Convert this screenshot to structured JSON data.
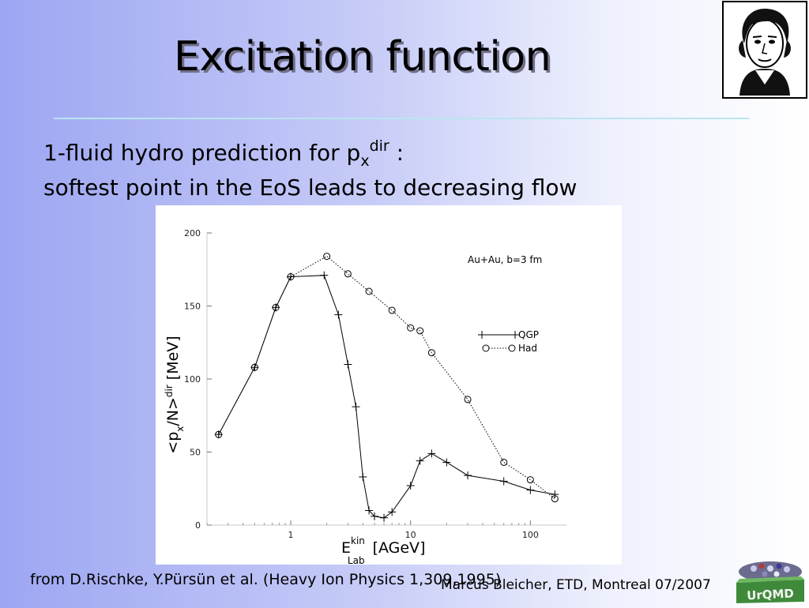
{
  "slide": {
    "title": "Excitation function",
    "subtitle_line1_prefix": "1-fluid hydro prediction for p",
    "subtitle_line1_sub": "x",
    "subtitle_line1_sup": "dir",
    "subtitle_line1_suffix": " :",
    "subtitle_line2": "softest point in the EoS leads to decreasing flow",
    "footer_reference": "from D.Rischke, Y.Pürsün et al. (Heavy Ion Physics 1,309,1995)",
    "footer_author": "Marcus Bleicher, ETD, Montreal 07/2007",
    "logo_text": "UrQMD",
    "portrait_icon": "goethe-portrait-icon",
    "colors": {
      "background_left": "#9da6f2",
      "background_right": "#ffffff",
      "rule": "#b9e6ef",
      "logo_green": "#3f8a3a"
    }
  },
  "chart_data": {
    "type": "line",
    "x_scale": "log",
    "xlim": [
      0.2,
      200
    ],
    "ylim": [
      0,
      200
    ],
    "x_ticks": [
      1,
      10,
      100
    ],
    "x_tick_labels": [
      "1",
      "10",
      "100"
    ],
    "y_ticks": [
      0,
      50,
      100,
      150,
      200
    ],
    "y_tick_labels": [
      "0",
      "50",
      "100",
      "150",
      "200"
    ],
    "ylabel_main": "<p",
    "ylabel_sub": "x",
    "ylabel_mid": "/N>",
    "ylabel_sup": "dir",
    "ylabel_unit": "[MeV]",
    "xlabel_main": "E",
    "xlabel_sup": "kin",
    "xlabel_sub": "Lab",
    "xlabel_unit": "[AGeV]",
    "annotation": "Au+Au, b=3 fm",
    "legend_position": "top-right",
    "series": [
      {
        "name": "QGP",
        "marker": "plus",
        "line": "solid",
        "points": [
          [
            0.25,
            62
          ],
          [
            0.5,
            108
          ],
          [
            0.75,
            149
          ],
          [
            1.0,
            170
          ],
          [
            1.9,
            171
          ],
          [
            2.5,
            144
          ],
          [
            3.0,
            110
          ],
          [
            3.5,
            81
          ],
          [
            4.0,
            33
          ],
          [
            4.5,
            10
          ],
          [
            5.0,
            6
          ],
          [
            6.0,
            5
          ],
          [
            7.0,
            9
          ],
          [
            10.0,
            27
          ],
          [
            12.0,
            44
          ],
          [
            15.0,
            49
          ],
          [
            20.0,
            43
          ],
          [
            30.0,
            34
          ],
          [
            60.0,
            30
          ],
          [
            100.0,
            24
          ],
          [
            160.0,
            21
          ]
        ]
      },
      {
        "name": "Had",
        "marker": "circle",
        "line": "dotted",
        "points": [
          [
            0.25,
            62
          ],
          [
            0.5,
            108
          ],
          [
            0.75,
            149
          ],
          [
            1.0,
            170
          ],
          [
            2.0,
            184
          ],
          [
            3.0,
            172
          ],
          [
            4.5,
            160
          ],
          [
            7.0,
            147
          ],
          [
            10.0,
            135
          ],
          [
            12.0,
            133
          ],
          [
            15.0,
            118
          ],
          [
            30.0,
            86
          ],
          [
            60.0,
            43
          ],
          [
            100.0,
            31
          ],
          [
            160.0,
            18
          ]
        ]
      }
    ]
  }
}
